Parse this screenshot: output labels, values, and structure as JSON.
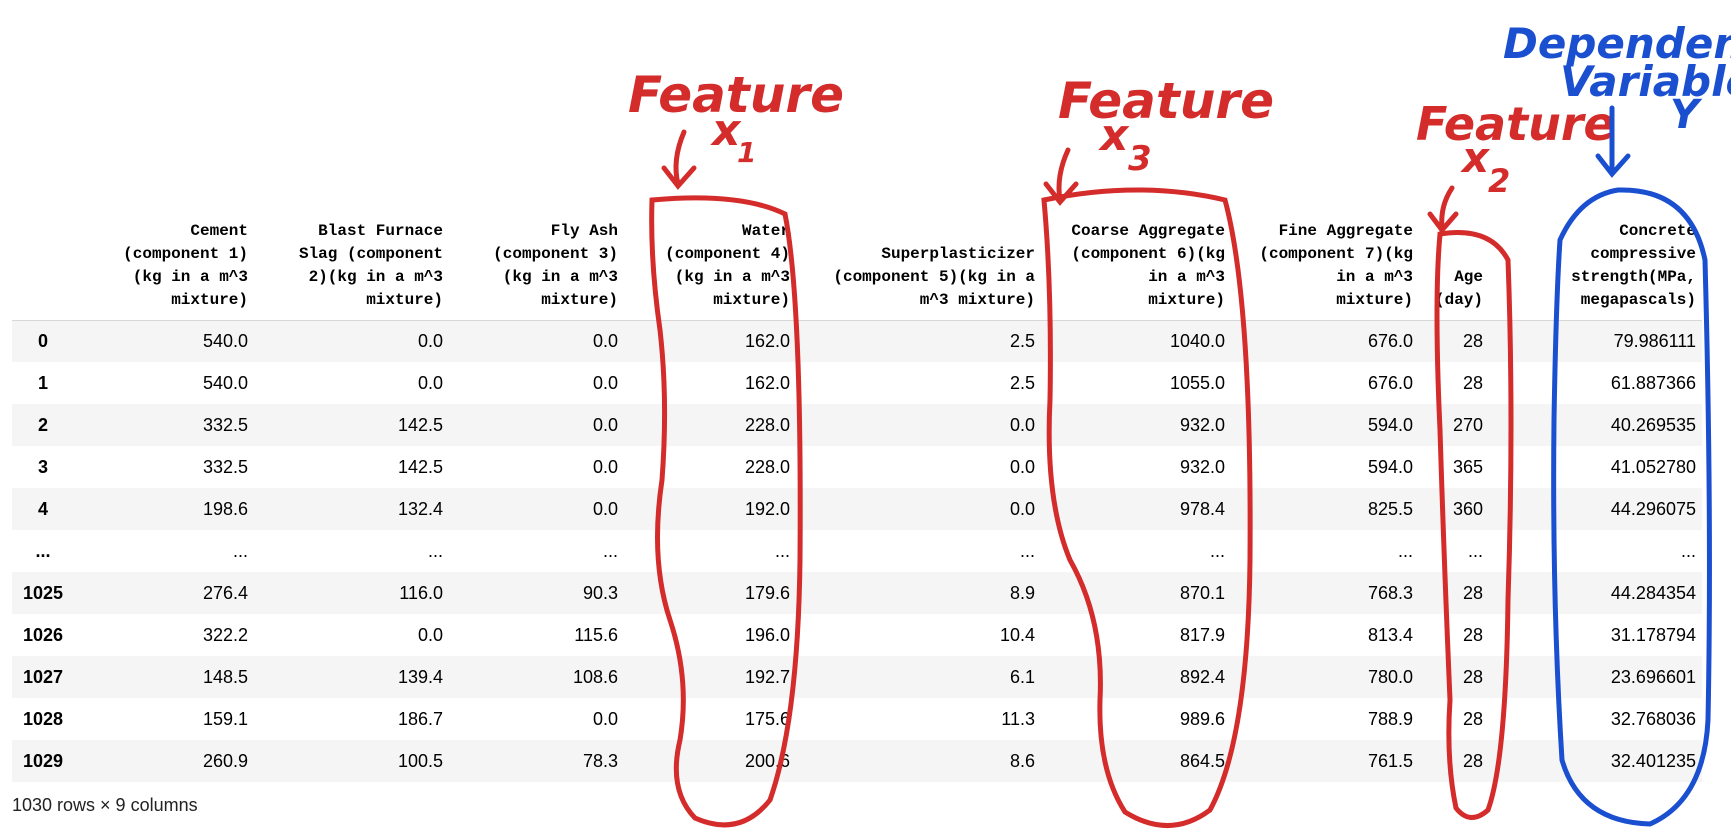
{
  "table": {
    "index_header": "",
    "columns": [
      "Cement\n(component 1)\n(kg in a m^3\nmixture)",
      "Blast Furnace\nSlag (component\n2)(kg in a m^3\nmixture)",
      "Fly Ash\n(component 3)\n(kg in a m^3\nmixture)",
      "Water\n(component 4)\n(kg in a m^3\nmixture)",
      "Superplasticizer\n(component 5)(kg in a\nm^3 mixture)",
      "Coarse Aggregate\n(component 6)(kg\nin a m^3\nmixture)",
      "Fine Aggregate\n(component 7)(kg\nin a m^3\nmixture)",
      "Age\n(day)",
      "Concrete\ncompressive\nstrength(MPa,\nmegapascals)"
    ],
    "rows": [
      {
        "index": "0",
        "cells": [
          "540.0",
          "0.0",
          "0.0",
          "162.0",
          "2.5",
          "1040.0",
          "676.0",
          "28",
          "79.986111"
        ]
      },
      {
        "index": "1",
        "cells": [
          "540.0",
          "0.0",
          "0.0",
          "162.0",
          "2.5",
          "1055.0",
          "676.0",
          "28",
          "61.887366"
        ]
      },
      {
        "index": "2",
        "cells": [
          "332.5",
          "142.5",
          "0.0",
          "228.0",
          "0.0",
          "932.0",
          "594.0",
          "270",
          "40.269535"
        ]
      },
      {
        "index": "3",
        "cells": [
          "332.5",
          "142.5",
          "0.0",
          "228.0",
          "0.0",
          "932.0",
          "594.0",
          "365",
          "41.052780"
        ]
      },
      {
        "index": "4",
        "cells": [
          "198.6",
          "132.4",
          "0.0",
          "192.0",
          "0.0",
          "978.4",
          "825.5",
          "360",
          "44.296075"
        ]
      },
      {
        "index": "...",
        "cells": [
          "...",
          "...",
          "...",
          "...",
          "...",
          "...",
          "...",
          "...",
          "..."
        ]
      },
      {
        "index": "1025",
        "cells": [
          "276.4",
          "116.0",
          "90.3",
          "179.6",
          "8.9",
          "870.1",
          "768.3",
          "28",
          "44.284354"
        ]
      },
      {
        "index": "1026",
        "cells": [
          "322.2",
          "0.0",
          "115.6",
          "196.0",
          "10.4",
          "817.9",
          "813.4",
          "28",
          "31.178794"
        ]
      },
      {
        "index": "1027",
        "cells": [
          "148.5",
          "139.4",
          "108.6",
          "192.7",
          "6.1",
          "892.4",
          "780.0",
          "28",
          "23.696601"
        ]
      },
      {
        "index": "1028",
        "cells": [
          "159.1",
          "186.7",
          "0.0",
          "175.6",
          "11.3",
          "989.6",
          "788.9",
          "28",
          "32.768036"
        ]
      },
      {
        "index": "1029",
        "cells": [
          "260.9",
          "100.5",
          "78.3",
          "200.6",
          "8.6",
          "864.5",
          "761.5",
          "28",
          "32.401235"
        ]
      }
    ]
  },
  "footer": "1030 rows × 9 columns",
  "annotations": {
    "feature_label": "Feature",
    "x_letter": "x",
    "sub1": "1",
    "sub2": "2",
    "sub3": "3",
    "dependent_line1": "Dependent",
    "dependent_line2": "Variable,",
    "y_letter": "Y",
    "red_color": "#d42b2b",
    "blue_color": "#1a4fd0"
  }
}
